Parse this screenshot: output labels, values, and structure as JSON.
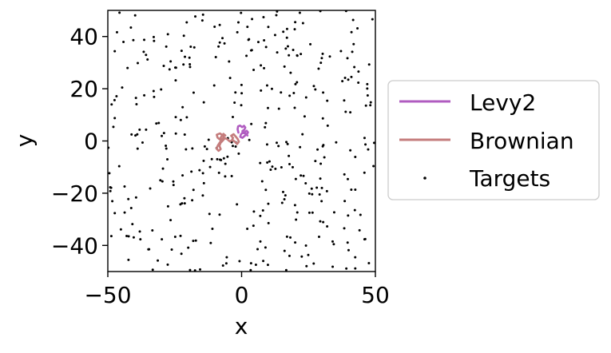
{
  "chart_data": {
    "type": "scatter",
    "title": "",
    "xlabel": "x",
    "ylabel": "y",
    "xlim": [
      -50,
      50
    ],
    "ylim": [
      -50,
      50
    ],
    "xticks": [
      -50,
      0,
      50
    ],
    "xtick_labels": [
      "−50",
      "0",
      "50"
    ],
    "yticks": [
      -40,
      -20,
      0,
      20,
      40
    ],
    "ytick_labels": [
      "−40",
      "−20",
      "0",
      "20",
      "40"
    ],
    "grid": false,
    "legend_position": "outside-right",
    "series": [
      {
        "name": "Levy2",
        "kind": "line",
        "color": "#b05cc0",
        "x": [
          -1.2,
          -1.5,
          -1.3,
          -0.6,
          0.2,
          0.9,
          1.4,
          1.0,
          0.3,
          0.5,
          1.3,
          1.9,
          2.4,
          2.0,
          1.2,
          0.4,
          -0.3,
          -0.5,
          0.3,
          1.1,
          1.8,
          2.2
        ],
        "y": [
          3.2,
          4.5,
          5.6,
          5.9,
          5.3,
          5.8,
          5.1,
          4.3,
          3.8,
          3.0,
          3.5,
          3.9,
          3.3,
          2.6,
          2.9,
          3.3,
          2.4,
          1.6,
          1.2,
          1.9,
          2.5,
          2.1
        ]
      },
      {
        "name": "Brownian",
        "kind": "line",
        "color": "#c47c7c",
        "x": [
          -3.6,
          -3.2,
          -3.9,
          -3.0,
          -2.2,
          -1.5,
          -1.0,
          -1.7,
          -2.4,
          -3.4,
          -4.4,
          -5.3,
          -6.2,
          -7.0,
          -7.9,
          -8.3,
          -7.8,
          -8.6,
          -9.4,
          -8.8,
          -8.1,
          -7.4,
          -6.6,
          -7.3,
          -8.1,
          -9.3,
          -9.0,
          -8.2,
          -7.5,
          -6.8,
          -6.1
        ],
        "y": [
          0.3,
          1.2,
          2.0,
          2.6,
          1.7,
          0.8,
          -0.3,
          -1.2,
          -0.4,
          0.4,
          -0.2,
          0.6,
          1.1,
          0.2,
          -0.8,
          -1.9,
          -3.1,
          -3.8,
          -2.9,
          -1.6,
          -0.5,
          0.5,
          1.5,
          2.3,
          2.9,
          2.4,
          1.3,
          0.6,
          1.8,
          2.7,
          2.1
        ]
      },
      {
        "name": "Targets",
        "kind": "scatter",
        "color": "#000000",
        "count": 380
      }
    ]
  }
}
